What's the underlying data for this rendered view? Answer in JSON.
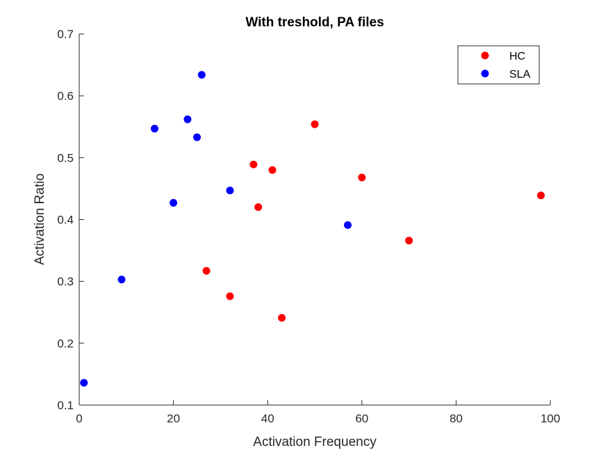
{
  "chart_data": {
    "type": "scatter",
    "title": "With treshold, PA files",
    "xlabel": "Activation Frequency",
    "ylabel": "Activation Ratio",
    "xlim": [
      0,
      100
    ],
    "ylim": [
      0.1,
      0.7
    ],
    "xticks": [
      0,
      20,
      40,
      60,
      80,
      100
    ],
    "yticks": [
      0.1,
      0.2,
      0.3,
      0.4,
      0.5,
      0.6,
      0.7
    ],
    "xtick_labels": [
      "0",
      "20",
      "40",
      "60",
      "80",
      "100"
    ],
    "ytick_labels": [
      "0.1",
      "0.2",
      "0.3",
      "0.4",
      "0.5",
      "0.6",
      "0.7"
    ],
    "grid": false,
    "legend_position": "top-right",
    "series": [
      {
        "name": "HC",
        "color": "#ff0000",
        "points": [
          [
            27,
            0.317
          ],
          [
            32,
            0.276
          ],
          [
            37,
            0.489
          ],
          [
            38,
            0.42
          ],
          [
            41,
            0.48
          ],
          [
            43,
            0.241
          ],
          [
            50,
            0.554
          ],
          [
            60,
            0.468
          ],
          [
            70,
            0.366
          ],
          [
            98,
            0.439
          ]
        ]
      },
      {
        "name": "SLA",
        "color": "#0000ff",
        "points": [
          [
            1,
            0.136
          ],
          [
            9,
            0.303
          ],
          [
            16,
            0.547
          ],
          [
            20,
            0.427
          ],
          [
            23,
            0.562
          ],
          [
            25,
            0.533
          ],
          [
            26,
            0.634
          ],
          [
            32,
            0.447
          ],
          [
            57,
            0.391
          ]
        ]
      }
    ]
  }
}
